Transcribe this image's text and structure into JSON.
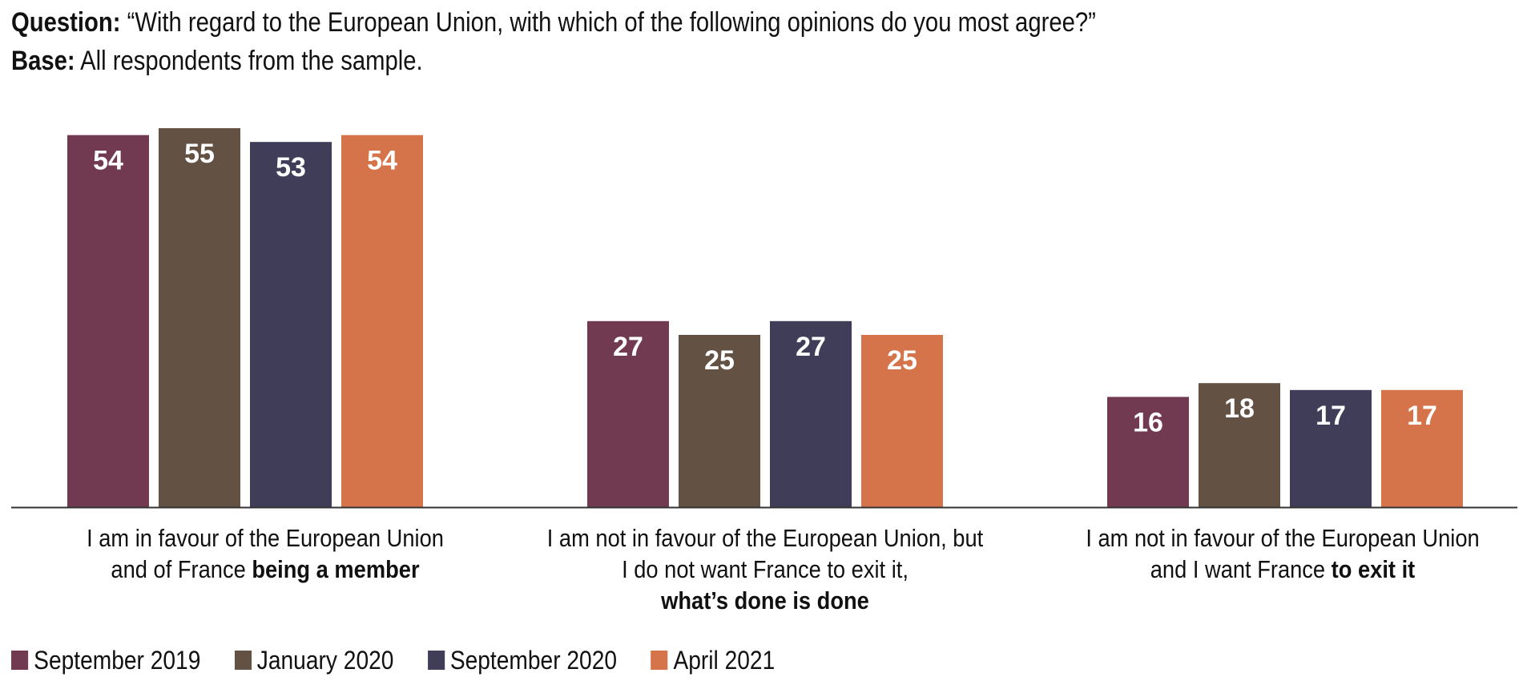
{
  "header": {
    "question_label": "Question:",
    "question_text": " “With regard to the European Union, with which of the following opinions do you most agree?”",
    "base_label": "Base:",
    "base_text": " All respondents from the sample."
  },
  "colors": {
    "september_2019": "#723a51",
    "january_2020": "#635144",
    "september_2020": "#3f3d58",
    "april_2021": "#d5734a",
    "axis": "#333333"
  },
  "chart_data": {
    "type": "bar",
    "categories": [
      "I am in favour of the European Union and of France being a member",
      "I am not in favour of the European Union, but I do not want France to exit it, what’s done is done",
      "I am not in favour of the European Union and I want France to exit it"
    ],
    "category_lines": [
      {
        "line1": "I am in favour of the European Union",
        "line2_pre": "and of France ",
        "line2_bold": "being a member",
        "line3_bold": ""
      },
      {
        "line1": "I am not in favour of the European Union, but",
        "line2_pre": "I do not want France to exit it,",
        "line2_bold": "",
        "line3_bold": "what’s done is done"
      },
      {
        "line1": "I am not in favour of the European Union",
        "line2_pre": "and I want France ",
        "line2_bold": "to exit it",
        "line3_bold": ""
      }
    ],
    "series": [
      {
        "name": "September 2019",
        "values": [
          54,
          27,
          16
        ]
      },
      {
        "name": "January 2020",
        "values": [
          55,
          25,
          18
        ]
      },
      {
        "name": "September 2020",
        "values": [
          53,
          27,
          17
        ]
      },
      {
        "name": "April 2021",
        "values": [
          54,
          25,
          17
        ]
      }
    ],
    "ylim": [
      0,
      55
    ],
    "grid": false,
    "legend_position": "bottom-left",
    "data_labels": true
  }
}
